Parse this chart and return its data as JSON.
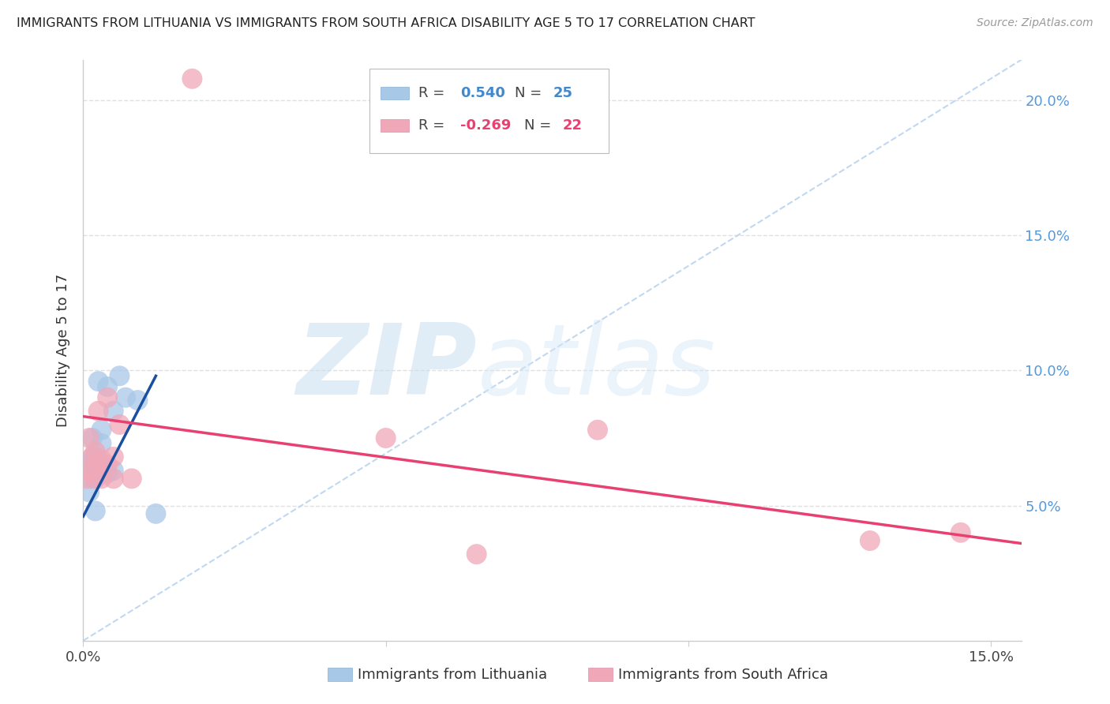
{
  "title": "IMMIGRANTS FROM LITHUANIA VS IMMIGRANTS FROM SOUTH AFRICA DISABILITY AGE 5 TO 17 CORRELATION CHART",
  "source": "Source: ZipAtlas.com",
  "ylabel": "Disability Age 5 to 17",
  "xlim": [
    0.0,
    0.155
  ],
  "ylim": [
    0.0,
    0.215
  ],
  "ytick_positions": [
    0.05,
    0.1,
    0.15,
    0.2
  ],
  "ytick_labels_right": [
    "5.0%",
    "10.0%",
    "15.0%",
    "20.0%"
  ],
  "xtick_positions": [
    0.0,
    0.05,
    0.1,
    0.15
  ],
  "xtick_labels": [
    "0.0%",
    "",
    "",
    "15.0%"
  ],
  "watermark_zip": "ZIP",
  "watermark_atlas": "atlas",
  "lithuania_color": "#a8c8e8",
  "south_africa_color": "#f0a8b8",
  "lithuania_line_color": "#1a4fa0",
  "south_africa_line_color": "#e84070",
  "dashed_line_color": "#c0d8f0",
  "legend_label1": "Immigrants from Lithuania",
  "legend_label2": "Immigrants from South Africa",
  "background_color": "#ffffff",
  "grid_color": "#e0e0e0",
  "lithuania_x": [
    0.0005,
    0.001,
    0.001,
    0.0013,
    0.0015,
    0.0015,
    0.0015,
    0.002,
    0.002,
    0.002,
    0.002,
    0.0022,
    0.0025,
    0.003,
    0.003,
    0.003,
    0.003,
    0.004,
    0.004,
    0.005,
    0.005,
    0.006,
    0.007,
    0.009,
    0.012
  ],
  "lithuania_y": [
    0.065,
    0.055,
    0.063,
    0.06,
    0.065,
    0.068,
    0.075,
    0.06,
    0.065,
    0.068,
    0.048,
    0.062,
    0.096,
    0.073,
    0.078,
    0.065,
    0.064,
    0.062,
    0.094,
    0.063,
    0.085,
    0.098,
    0.09,
    0.089,
    0.047
  ],
  "south_africa_x": [
    0.0005,
    0.001,
    0.001,
    0.0015,
    0.002,
    0.002,
    0.002,
    0.0025,
    0.003,
    0.003,
    0.004,
    0.004,
    0.005,
    0.005,
    0.006,
    0.008,
    0.018,
    0.05,
    0.065,
    0.085,
    0.13,
    0.145
  ],
  "south_africa_y": [
    0.06,
    0.075,
    0.063,
    0.068,
    0.06,
    0.065,
    0.07,
    0.085,
    0.06,
    0.067,
    0.065,
    0.09,
    0.06,
    0.068,
    0.08,
    0.06,
    0.208,
    0.075,
    0.032,
    0.078,
    0.037,
    0.04
  ],
  "lit_trend_x": [
    0.0,
    0.012
  ],
  "lit_trend_y": [
    0.046,
    0.098
  ],
  "sa_trend_x": [
    0.0,
    0.155
  ],
  "sa_trend_y": [
    0.083,
    0.036
  ]
}
